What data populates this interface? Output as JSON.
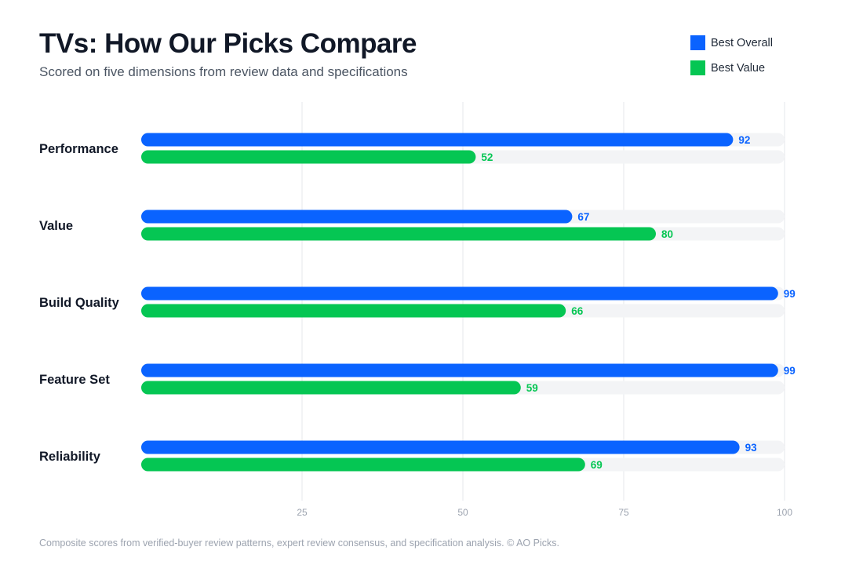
{
  "header": {
    "title": "TVs: How Our Picks Compare",
    "subtitle": "Scored on five dimensions from review data and specifications"
  },
  "colors": {
    "best_overall": "#0a63ff",
    "best_value": "#05c653",
    "track": "#f3f4f6",
    "grid": "#e5e7eb",
    "category_text": "#111827",
    "tick_text": "#9ca3af"
  },
  "chart_data": {
    "type": "bar",
    "orientation": "horizontal",
    "title": "TVs: How Our Picks Compare",
    "subtitle": "Scored on five dimensions from review data and specifications",
    "categories": [
      "Performance",
      "Value",
      "Build Quality",
      "Feature Set",
      "Reliability"
    ],
    "series": [
      {
        "name": "Best Overall",
        "color": "#0a63ff",
        "values": [
          92,
          67,
          99,
          99,
          93
        ]
      },
      {
        "name": "Best Value",
        "color": "#05c653",
        "values": [
          52,
          80,
          66,
          59,
          69
        ]
      }
    ],
    "xlim": [
      0,
      100
    ],
    "xticks": [
      25,
      50,
      75,
      100
    ],
    "grid": true,
    "legend": "top-right",
    "data_labels": true
  },
  "footnote": "Composite scores from verified-buyer review patterns, expert review consensus, and specification analysis. © AO Picks."
}
